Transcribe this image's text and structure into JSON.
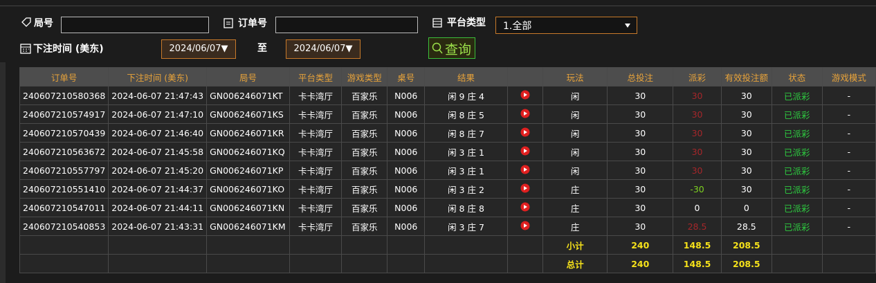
{
  "filters": {
    "round_label": "局号",
    "order_label": "订单号",
    "platform_label": "平台类型",
    "platform_value": "1.全部",
    "time_label": "下注时间 (美东)",
    "date_from": "2024/06/07▼",
    "to_label": "至",
    "date_to": "2024/06/07▼",
    "query_button": "查询"
  },
  "table": {
    "headers": [
      "订单号",
      "下注时间 (美东)",
      "局号",
      "平台类型",
      "游戏类型",
      "桌号",
      "结果",
      "玩法",
      "总投注",
      "派彩",
      "有效投注额",
      "状态",
      "游戏模式"
    ],
    "rows": [
      [
        "240607210580368",
        "2024-06-07 21:47:43",
        "GN006246071KT",
        "卡卡湾厅",
        "百家乐",
        "N006",
        "闲 9 庄 4",
        "闲",
        "30",
        "30",
        "30",
        "已派彩",
        "-"
      ],
      [
        "240607210574917",
        "2024-06-07 21:47:10",
        "GN006246071KS",
        "卡卡湾厅",
        "百家乐",
        "N006",
        "闲 8 庄 5",
        "闲",
        "30",
        "30",
        "30",
        "已派彩",
        "-"
      ],
      [
        "240607210570439",
        "2024-06-07 21:46:40",
        "GN006246071KR",
        "卡卡湾厅",
        "百家乐",
        "N006",
        "闲 8 庄 7",
        "闲",
        "30",
        "30",
        "30",
        "已派彩",
        "-"
      ],
      [
        "240607210563672",
        "2024-06-07 21:45:58",
        "GN006246071KQ",
        "卡卡湾厅",
        "百家乐",
        "N006",
        "闲 3 庄 1",
        "闲",
        "30",
        "30",
        "30",
        "已派彩",
        "-"
      ],
      [
        "240607210557797",
        "2024-06-07 21:45:20",
        "GN006246071KP",
        "卡卡湾厅",
        "百家乐",
        "N006",
        "闲 3 庄 1",
        "闲",
        "30",
        "30",
        "30",
        "已派彩",
        "-"
      ],
      [
        "240607210551410",
        "2024-06-07 21:44:37",
        "GN006246071KO",
        "卡卡湾厅",
        "百家乐",
        "N006",
        "闲 3 庄 2",
        "庄",
        "30",
        "-30",
        "30",
        "已派彩",
        "-"
      ],
      [
        "240607210547011",
        "2024-06-07 21:44:11",
        "GN006246071KN",
        "卡卡湾厅",
        "百家乐",
        "N006",
        "闲 8 庄 8",
        "庄",
        "30",
        "0",
        "0",
        "已派彩",
        "-"
      ],
      [
        "240607210540853",
        "2024-06-07 21:43:31",
        "GN006246071KM",
        "卡卡湾厅",
        "百家乐",
        "N006",
        "闲 3 庄 7",
        "庄",
        "30",
        "28.5",
        "28.5",
        "已派彩",
        "-"
      ]
    ],
    "payout_colors": [
      "#a5262a",
      "#a5262a",
      "#a5262a",
      "#a5262a",
      "#a5262a",
      "#7ed321",
      "#ffffff",
      "#a5262a"
    ],
    "summary": [
      {
        "label": "小计",
        "bet": "240",
        "payout": "148.5",
        "valid": "208.5"
      },
      {
        "label": "总计",
        "bet": "240",
        "payout": "148.5",
        "valid": "208.5"
      }
    ]
  }
}
